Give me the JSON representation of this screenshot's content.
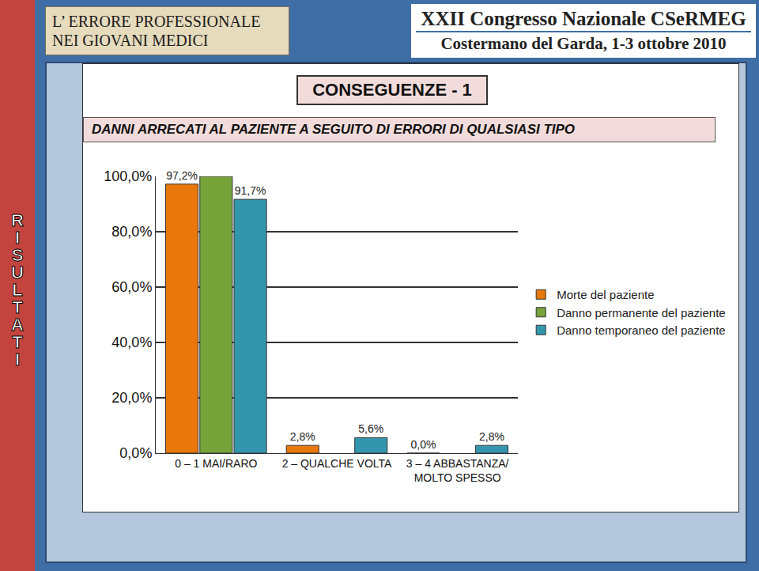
{
  "header": {
    "left": [
      "L’ ERRORE PROFESSIONALE",
      "NEI GIOVANI MEDICI"
    ],
    "right": [
      "XXII Congresso Nazionale CSeRMEG",
      "Costermano del Garda, 1-3 ottobre 2010"
    ]
  },
  "side_label": "RISULTATI",
  "chart_data": {
    "type": "bar",
    "title": "CONSEGUENZE - 1",
    "subtitle": "DANNI ARRECATI AL PAZIENTE A SEGUITO DI ERRORI DI QUALSIASI TIPO",
    "categories": [
      "0 – 1 MAI/RARO",
      "2 – QUALCHE VOLTA",
      "3 – 4 ABBASTANZA/ MOLTO SPESSO"
    ],
    "series": [
      {
        "name": "Morte del paziente",
        "color": "#e8780c",
        "values": [
          97.2,
          2.8,
          0.0
        ],
        "value_labels": [
          "97,2%",
          "2,8%",
          "0,0%"
        ]
      },
      {
        "name": "Danno permanente del paziente",
        "color": "#77a33b",
        "values": [
          100,
          null,
          null
        ],
        "value_labels": [
          null,
          null,
          null
        ]
      },
      {
        "name": "Danno temporaneo del paziente",
        "color": "#3396ad",
        "values": [
          91.7,
          5.6,
          2.8
        ],
        "value_labels": [
          "91,7%",
          "5,6%",
          "2,8%"
        ]
      }
    ],
    "ylim": [
      0,
      100
    ],
    "yticks": [
      {
        "value": 0,
        "label": "0,0%"
      },
      {
        "value": 20,
        "label": "20,0%"
      },
      {
        "value": 40,
        "label": "40,0%"
      },
      {
        "value": 60,
        "label": "60,0%"
      },
      {
        "value": 80,
        "label": "80,0%"
      },
      {
        "value": 100,
        "label": "100,0%"
      }
    ],
    "grid": true,
    "legend": "right",
    "data_labels": true
  }
}
